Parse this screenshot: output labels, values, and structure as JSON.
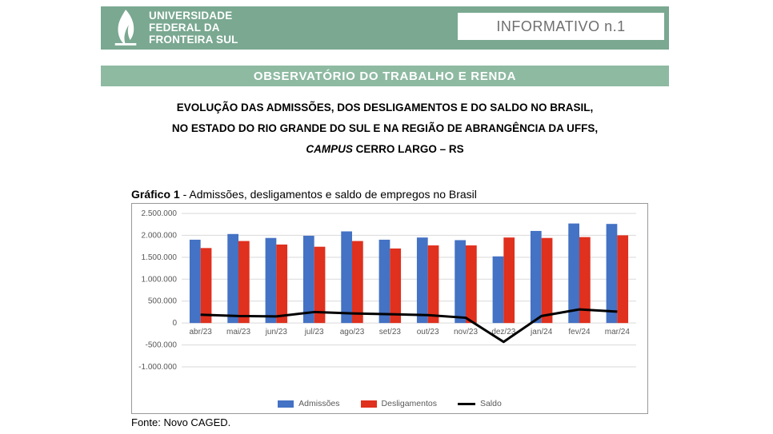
{
  "header": {
    "uni_line1": "UNIVERSIDADE",
    "uni_line2": "FEDERAL DA",
    "uni_line3": "FRONTEIRA SUL",
    "info_label": "INFORMATIVO n.1",
    "subband": "OBSERVATÓRIO DO TRABALHO E RENDA",
    "band_color": "#7aa891",
    "subband_color": "#8ebaa2"
  },
  "title": {
    "line1": "EVOLUÇÃO DAS ADMISSÕES, DOS DESLIGAMENTOS E DO SALDO NO BRASIL,",
    "line2": "NO ESTADO DO RIO GRANDE DO SUL E NA REGIÃO DE ABRANGÊNCIA DA UFFS,",
    "line3_italic": "CAMPUS",
    "line3_rest": " CERRO LARGO – RS"
  },
  "caption_bold": "Gráfico 1",
  "caption_rest": " - Admissões, desligamentos e saldo de empregos no Brasil",
  "source": "Fonte: Novo CAGED.",
  "chart": {
    "type": "bar+line",
    "categories": [
      "abr/23",
      "mai/23",
      "jun/23",
      "jul/23",
      "ago/23",
      "set/23",
      "out/23",
      "nov/23",
      "dez/23",
      "jan/24",
      "fev/24",
      "mar/24"
    ],
    "series": {
      "admissoes": {
        "label": "Admissões",
        "color": "#4472c4",
        "values": [
          1900000,
          2030000,
          1940000,
          1990000,
          2090000,
          1900000,
          1950000,
          1890000,
          1520000,
          2100000,
          2270000,
          2260000
        ]
      },
      "desligamentos": {
        "label": "Desligamentos",
        "color": "#e0301e",
        "values": [
          1710000,
          1870000,
          1790000,
          1740000,
          1870000,
          1700000,
          1770000,
          1770000,
          1950000,
          1940000,
          1960000,
          2000000
        ]
      },
      "saldo": {
        "label": "Saldo",
        "color": "#000000",
        "values": [
          190000,
          160000,
          150000,
          250000,
          220000,
          200000,
          180000,
          120000,
          -430000,
          160000,
          310000,
          260000
        ]
      }
    },
    "ylim": [
      -1000000,
      2500000
    ],
    "ytick_step": 500000,
    "ytick_labels": [
      "-1.000.000",
      "-500.000",
      "0",
      "500.000",
      "1.000.000",
      "1.500.000",
      "2.000.000",
      "2.500.000"
    ],
    "grid_color": "#d9d9d9",
    "axis_text_color": "#595959",
    "bar_group_width": 0.58,
    "line_width": 3,
    "background_color": "#ffffff",
    "border_color": "#999999",
    "label_fontsize": 10
  }
}
